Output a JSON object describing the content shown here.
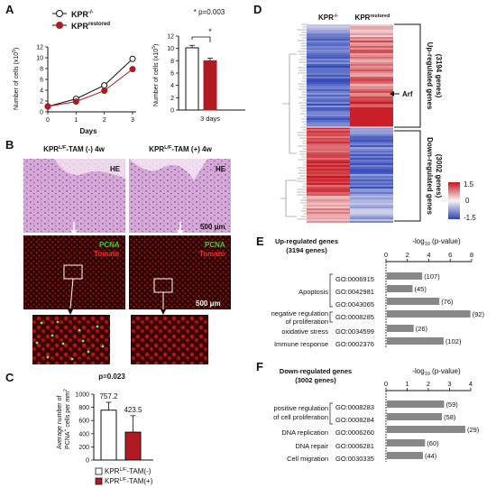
{
  "panels": {
    "A": {
      "letter": "A",
      "legend": [
        "KPR",
        "KPR"
      ],
      "legend_sup": [
        "-/-",
        "restored"
      ],
      "ylabel": "Number of cells (x10",
      "ylabel_sup": "5",
      "ylabel_tail": ")",
      "xlabel": "Days",
      "pvalue": "* p=0.003",
      "star": "*",
      "bar_xlabel": "3 days"
    },
    "B": {
      "letter": "B",
      "left_title": "KPR",
      "left_sup": "L/F",
      "left_tail": "-TAM (-) 4w",
      "right_title": "KPR",
      "right_sup": "L/F",
      "right_tail": "-TAM (+) 4w",
      "he": "HE",
      "pcna": "PCNA",
      "tomato": "Tomato",
      "scale": "500 μm"
    },
    "C": {
      "letter": "C",
      "pvalue": "p=0.023",
      "ylabel_line1": "Average number of",
      "ylabel_line2": "PCNA",
      "ylabel_line2_sup": "+",
      "ylabel_line2_tail": " cells per mm",
      "ylabel_line2_sup2": "2",
      "legend": [
        "KPR",
        "KPR"
      ],
      "legend_sup": [
        "L/F",
        "L/F"
      ],
      "legend_tail": [
        "-TAM(-)",
        "-TAM(+)"
      ]
    },
    "D": {
      "letter": "D",
      "col_labels": [
        "KPR",
        "KPR"
      ],
      "col_sups": [
        "-/-",
        "restored"
      ],
      "up_label": "Up-regulated genes",
      "up_count": "(3194 genes)",
      "down_label": "Down-regulated genes",
      "down_count": "(3002 genes)",
      "arf": "Arf",
      "scale_ticks": [
        "1.5",
        "0",
        "-1.5"
      ]
    },
    "E": {
      "letter": "E",
      "title_line1": "Up-regulated genes",
      "title_line2": "(3194 genes)",
      "axis_title": "-log",
      "axis_sub": "10",
      "axis_tail": " (p-value)",
      "rows": [
        {
          "cat": "",
          "go": "GO:0006915"
        },
        {
          "cat": "Apoptosis",
          "go": "GO:0042981"
        },
        {
          "cat": "",
          "go": "GO:0043065"
        },
        {
          "cat": "negative regulation",
          "go": "GO:0008285"
        },
        {
          "cat": "of proliferation",
          "go": ""
        },
        {
          "cat": "oxidative stress",
          "go": "GO:0034599"
        },
        {
          "cat": "Immune response",
          "go": "GO:0002376"
        }
      ]
    },
    "F": {
      "letter": "F",
      "title_line1": "Down-regulated genes",
      "title_line2": "(3002 genes)",
      "axis_title": "-log",
      "axis_sub": "10",
      "axis_tail": " (p-value)",
      "rows": [
        {
          "cat": "positive regulation",
          "go": "GO:0008283"
        },
        {
          "cat": "of cell proliferation",
          "go": "GO:0008284"
        },
        {
          "cat": "DNA replication",
          "go": "GO:0006260"
        },
        {
          "cat": "DNA repair",
          "go": "GO:0006281"
        },
        {
          "cat": "Cell migration",
          "go": "GO:0030335"
        }
      ]
    }
  },
  "colors": {
    "kpr_null": "#ffffff",
    "kpr_restored": "#b01a22",
    "bar_grey": "#888888",
    "heat_red": "#c8141e",
    "heat_blue": "#2e45b8"
  },
  "chart_data": [
    {
      "type": "line",
      "panel": "A",
      "x": [
        0,
        1,
        2,
        3
      ],
      "series": [
        {
          "name": "KPR-/-",
          "values": [
            1,
            2.4,
            4.9,
            9.8
          ]
        },
        {
          "name": "KPRrestored",
          "values": [
            1,
            1.9,
            3.9,
            7.9
          ]
        }
      ],
      "ylim": [
        0,
        12
      ],
      "yticks": [
        "0",
        "2",
        "4",
        "6",
        "8",
        "10",
        "12"
      ],
      "xticks": [
        "0",
        "1",
        "2",
        "3"
      ]
    },
    {
      "type": "bar",
      "panel": "A",
      "categories": [
        "KPR-/-",
        "KPRrestored"
      ],
      "values": [
        10.1,
        8.0
      ],
      "errors": [
        0.4,
        0.4
      ],
      "ylim": [
        0,
        12
      ],
      "yticks": [
        "0",
        "2",
        "4",
        "6",
        "8",
        "10",
        "12"
      ]
    },
    {
      "type": "bar",
      "panel": "C",
      "categories": [
        "KPRL/F-TAM(-)",
        "KPRL/F-TAM(+)"
      ],
      "values": [
        757.2,
        423.5
      ],
      "value_labels": [
        "757.2",
        "423.5"
      ],
      "errors": [
        120,
        250
      ],
      "ylim": [
        0,
        1000
      ],
      "yticks": [
        "0",
        "200",
        "400",
        "600",
        "800",
        "1000"
      ]
    },
    {
      "type": "heatmap",
      "panel": "D",
      "columns": [
        "KPR-/-",
        "KPRrestored"
      ],
      "scale": [
        -1.5,
        1.5
      ]
    },
    {
      "type": "bar",
      "panel": "E",
      "categories": [
        "GO:0006915",
        "GO:0042981",
        "GO:0043065",
        "GO:0008285",
        "GO:0034599",
        "GO:0002376"
      ],
      "values": [
        3.3,
        2.4,
        4.9,
        7.8,
        2.5,
        5.3
      ],
      "value_labels": [
        "(107)",
        "(45)",
        "(76)",
        "(92)",
        "(26)",
        "(102)"
      ],
      "xlim": [
        0,
        8
      ],
      "xticks": [
        "0",
        "2",
        "4",
        "6",
        "8"
      ]
    },
    {
      "type": "bar",
      "panel": "F",
      "categories": [
        "GO:0008283",
        "GO:0008284",
        "GO:0006260",
        "GO:0006281",
        "GO:0030335"
      ],
      "values": [
        2.7,
        2.6,
        3.7,
        1.8,
        1.7
      ],
      "value_labels": [
        "(59)",
        "(58)",
        "(29)",
        "(60)",
        "(44)"
      ],
      "xlim": [
        0,
        4
      ],
      "xticks": [
        "0",
        "1",
        "2",
        "3",
        "4"
      ]
    }
  ]
}
